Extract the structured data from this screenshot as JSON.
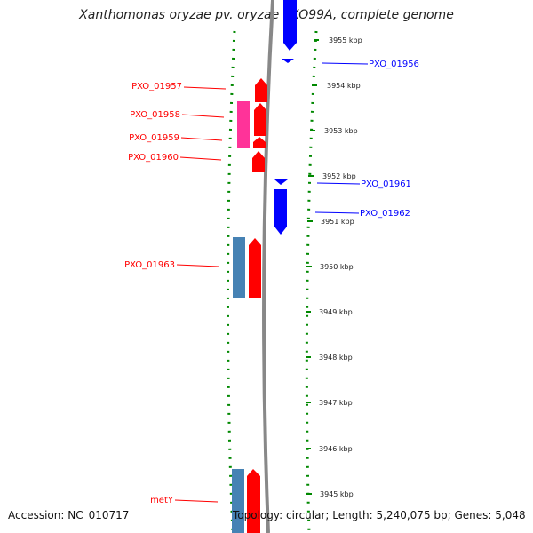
{
  "title": "Xanthomonas oryzae pv. oryzae PXO99A, complete genome",
  "footer": {
    "accession": "Accession: NC_010717",
    "summary": "Topology: circular; Length: 5,240,075 bp; Genes: 5,048"
  },
  "colors": {
    "forward": "#ff0000",
    "reverse": "#0000ff",
    "pink": "#ff3399",
    "steelblue": "#4682b4",
    "tick": "#008800",
    "backbone": "#888888"
  },
  "scale": {
    "unit": "kbp",
    "ticks": [
      "3955 kbp",
      "3954 kbp",
      "3953 kbp",
      "3952 kbp",
      "3951 kbp",
      "3950 kbp",
      "3949 kbp",
      "3948 kbp",
      "3947 kbp",
      "3946 kbp",
      "3945 kbp"
    ]
  },
  "labels": {
    "left": [
      "PXO_01957",
      "PXO_01958",
      "PXO_01959",
      "PXO_01960",
      "PXO_01963",
      "metY"
    ],
    "right": [
      "PXO_01956",
      "PXO_01961",
      "PXO_01962"
    ]
  }
}
